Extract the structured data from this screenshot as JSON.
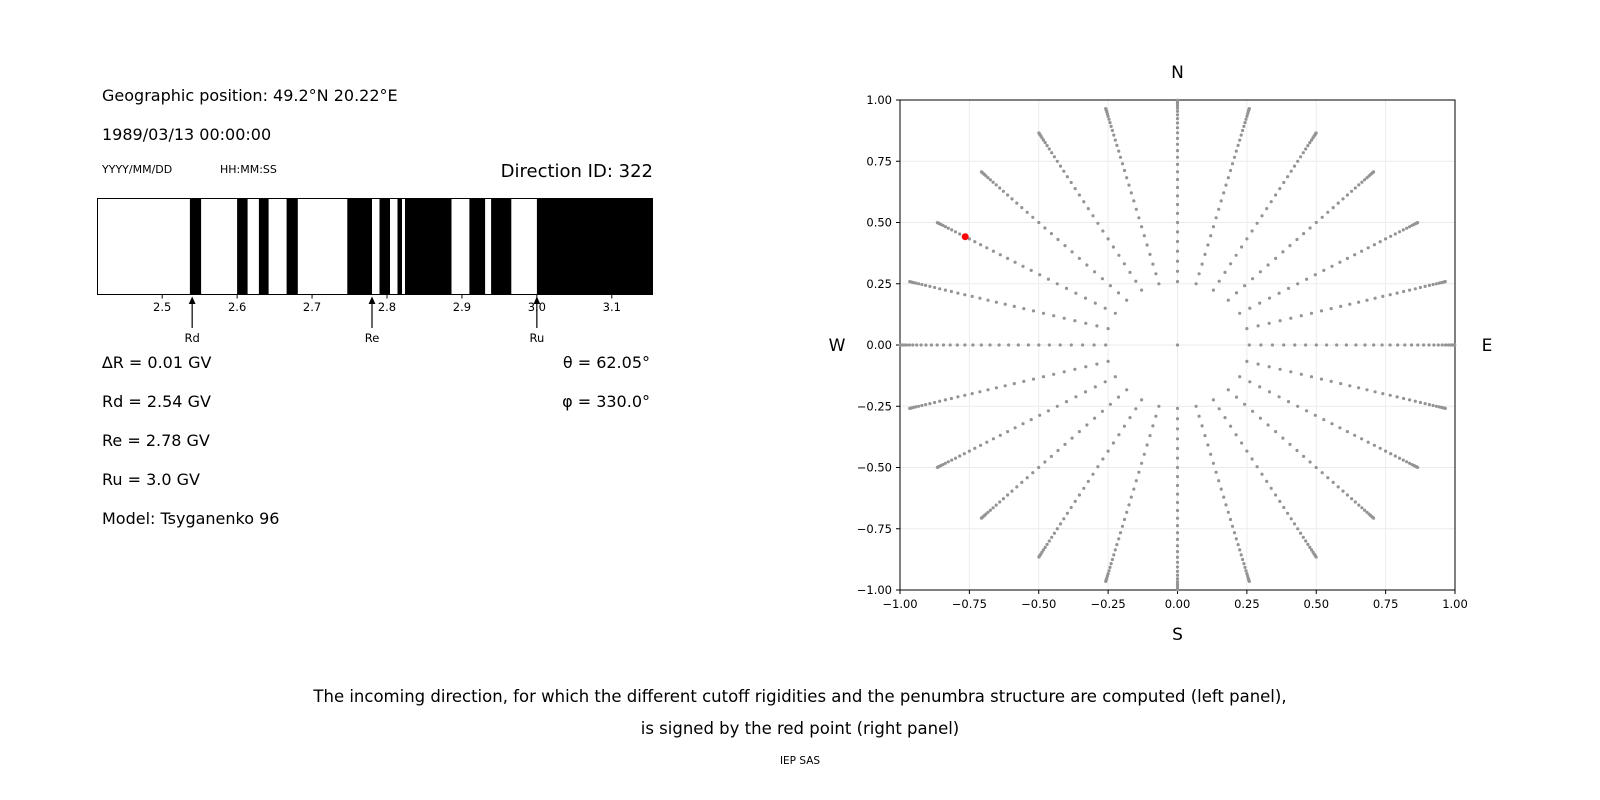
{
  "left_panel": {
    "geo_position": "Geographic position: 49.2°N 20.22°E",
    "datetime": "1989/03/13 00:00:00",
    "date_format_hint": "YYYY/MM/DD",
    "time_format_hint": "HH:MM:SS",
    "direction_id": "Direction ID: 322",
    "delta_r": "∆R = 0.01 GV",
    "rd": "Rd = 2.54 GV",
    "re": "Re = 2.78 GV",
    "ru": "Ru = 3.0 GV",
    "model": "Model: Tsyganenko 96",
    "theta": "θ = 62.05°",
    "phi": "φ = 330.0°"
  },
  "caption": {
    "line1": "The incoming direction, for which the different cutoff rigidities and the penumbra structure are computed (left panel),",
    "line2": "is signed by the red point (right panel)",
    "credit": "IEP SAS"
  },
  "chart_data": [
    {
      "name": "penumbra-structure",
      "type": "bar",
      "subtype": "penumbra-band-barcode",
      "xlim": [
        2.413,
        3.155
      ],
      "band_color": "#000000",
      "background_color": "#ffffff",
      "xticks": [
        {
          "value": 2.5,
          "label": "2.5"
        },
        {
          "value": 2.6,
          "label": "2.6"
        },
        {
          "value": 2.7,
          "label": "2.7"
        },
        {
          "value": 2.8,
          "label": "2.8"
        },
        {
          "value": 2.9,
          "label": "2.9"
        },
        {
          "value": 3.0,
          "label": "3.0"
        },
        {
          "value": 3.1,
          "label": "3.1"
        }
      ],
      "black_bands_gv": [
        [
          2.537,
          2.552
        ],
        [
          2.6,
          2.614
        ],
        [
          2.629,
          2.642
        ],
        [
          2.666,
          2.681
        ],
        [
          2.747,
          2.78
        ],
        [
          2.79,
          2.804
        ],
        [
          2.814,
          2.82
        ],
        [
          2.824,
          2.886
        ],
        [
          2.91,
          2.931
        ],
        [
          2.939,
          2.966
        ],
        [
          3.0,
          3.155
        ]
      ],
      "markers": [
        {
          "label": "Rd",
          "value": 2.54
        },
        {
          "label": "Re",
          "value": 2.78
        },
        {
          "label": "Ru",
          "value": 3.0
        }
      ]
    },
    {
      "name": "incoming-directions",
      "type": "scatter",
      "xlim": [
        -1.0,
        1.0
      ],
      "ylim": [
        -1.0,
        1.0
      ],
      "grid": true,
      "grid_color": "#ebebeb",
      "dot_color": "#949494",
      "dot_radius_px": 1.6,
      "compass_labels": {
        "top": "N",
        "right": "E",
        "bottom": "S",
        "left": "W"
      },
      "xticks": [
        {
          "value": -1.0,
          "label": "−1.00"
        },
        {
          "value": -0.75,
          "label": "−0.75"
        },
        {
          "value": -0.5,
          "label": "−0.50"
        },
        {
          "value": -0.25,
          "label": "−0.25"
        },
        {
          "value": 0.0,
          "label": "0.00"
        },
        {
          "value": 0.25,
          "label": "0.25"
        },
        {
          "value": 0.5,
          "label": "0.50"
        },
        {
          "value": 0.75,
          "label": "0.75"
        },
        {
          "value": 1.0,
          "label": "1.00"
        }
      ],
      "yticks": [
        {
          "value": -1.0,
          "label": "−1.00"
        },
        {
          "value": -0.75,
          "label": "−0.75"
        },
        {
          "value": -0.5,
          "label": "−0.50"
        },
        {
          "value": -0.25,
          "label": "−0.25"
        },
        {
          "value": 0.0,
          "label": "0.00"
        },
        {
          "value": 0.25,
          "label": "0.25"
        },
        {
          "value": 0.5,
          "label": "0.50"
        },
        {
          "value": 0.75,
          "label": "0.75"
        },
        {
          "value": 1.0,
          "label": "1.00"
        }
      ],
      "grid_generator": {
        "description": "direction grid dots: x = sin(zenith)*cos(azimuth), y = sin(zenith)*sin(azimuth)",
        "azimuth_start_deg": 0,
        "azimuth_step_deg": 15,
        "azimuth_count": 24,
        "zenith_min_deg": 15,
        "zenith_step_deg": 2.5,
        "zenith_max_deg": 87.5,
        "center_dot": true
      },
      "red_point": {
        "x": -0.765,
        "y": 0.442,
        "color": "#ff0000",
        "radius_px": 3.5
      }
    }
  ]
}
